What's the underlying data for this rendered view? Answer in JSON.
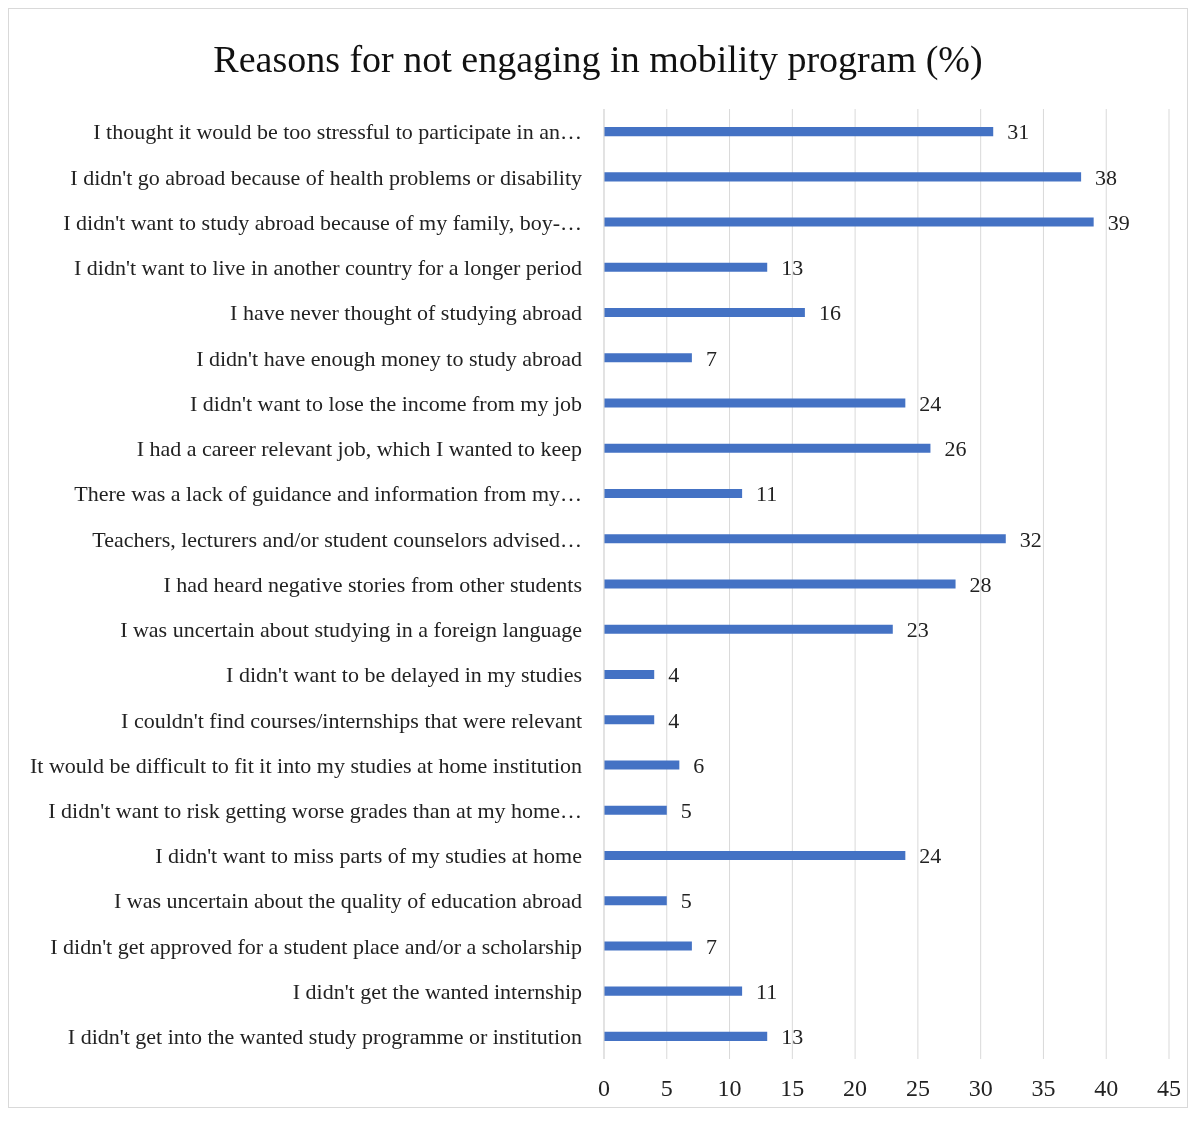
{
  "chart_data": {
    "type": "bar",
    "orientation": "horizontal",
    "title": "Reasons for not engaging in mobility program (%)",
    "categories": [
      "I thought it would be too stressful to participate in an…",
      "I didn't go abroad because of health problems or disability",
      "I didn't want to study abroad because of my family, boy-…",
      "I didn't want to live in another country for a longer period",
      "I have never thought of studying abroad",
      "I didn't have enough money to study abroad",
      "I didn't want to lose the income from my job",
      "I had a career relevant job, which I wanted to keep",
      "There was a lack of guidance and information from my…",
      "Teachers, lecturers and/or student counselors advised…",
      "I had heard negative stories from other students",
      "I was uncertain about studying in a foreign language",
      "I didn't want to be delayed in my studies",
      "I couldn't find courses/internships that were relevant",
      "It would be difficult to fit it into my studies at home institution",
      "I didn't want to risk getting worse grades than at my home…",
      "I didn't want to miss parts of my studies at home",
      "I was uncertain about the quality of education abroad",
      "I didn't get approved for a student place and/or a scholarship",
      "I didn't get the wanted internship",
      "I didn't get into the wanted study programme or institution"
    ],
    "values": [
      31,
      38,
      39,
      13,
      16,
      7,
      24,
      26,
      11,
      32,
      28,
      23,
      4,
      4,
      6,
      5,
      24,
      5,
      7,
      11,
      13
    ],
    "color": "#4472c4",
    "xlim": [
      0,
      45
    ],
    "xticks": [
      0,
      5,
      10,
      15,
      20,
      25,
      30,
      35,
      40,
      45
    ],
    "grid": "x",
    "data_labels": true
  }
}
